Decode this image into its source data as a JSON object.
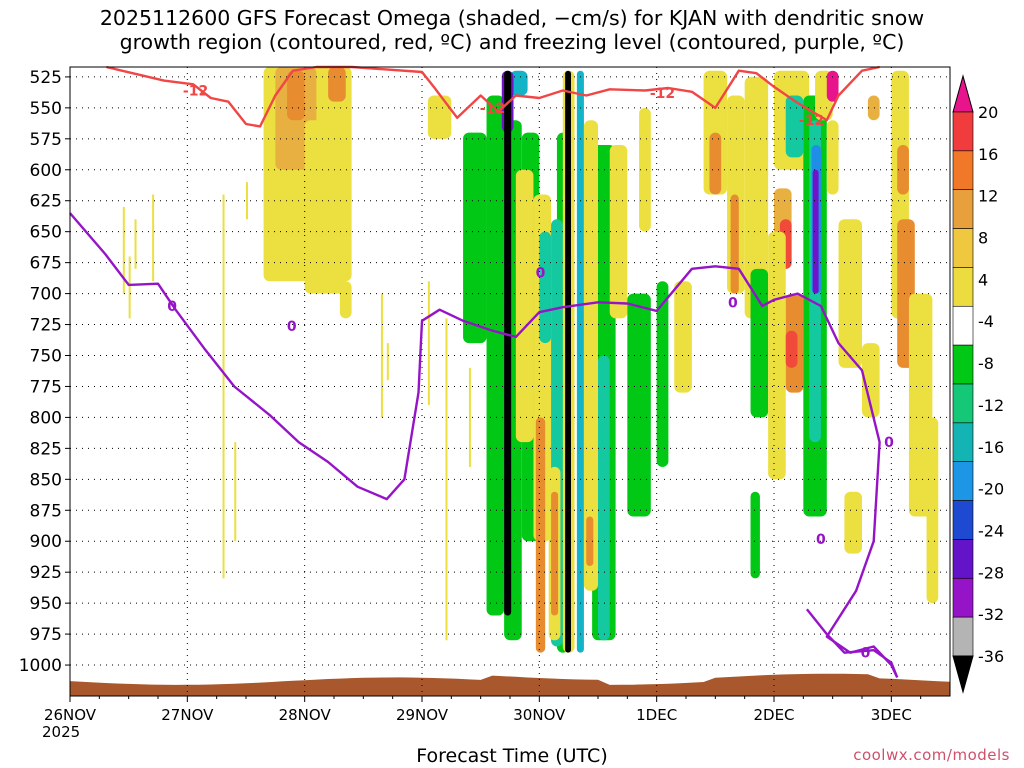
{
  "title": {
    "line1": "2025112600 GFS Forecast Omega (shaded, −cm/s) for KJAN with dendritic snow",
    "line2": "growth region (contoured, red, ºC) and freezing level (contoured, purple, ºC)"
  },
  "credit": "coolwx.com/models",
  "chart_data": {
    "type": "heatmap",
    "xlabel": "Forecast Time (UTC)",
    "year_label": "2025",
    "x_ticks": [
      "26NOV",
      "27NOV",
      "28NOV",
      "29NOV",
      "30NOV",
      "1DEC",
      "2DEC",
      "3DEC"
    ],
    "x_range_days": [
      0,
      7.5
    ],
    "y_ticks": [
      525,
      550,
      575,
      600,
      625,
      650,
      675,
      700,
      725,
      750,
      775,
      800,
      825,
      850,
      875,
      900,
      925,
      950,
      975,
      1000
    ],
    "y_range_hpa": [
      517,
      1025
    ],
    "grid": true,
    "colorbar": {
      "labels": [
        "20",
        "16",
        "12",
        "8",
        "4",
        "-4",
        "-8",
        "-12",
        "-16",
        "-20",
        "-24",
        "-28",
        "-32",
        "-36"
      ],
      "colors": [
        "#e8148c",
        "#f03c3c",
        "#f07828",
        "#e8a03c",
        "#f0c840",
        "#ecdc40",
        "#ffffff",
        "#00c814",
        "#14c878",
        "#14b4b4",
        "#1e96e6",
        "#1e4ad2",
        "#6414c8",
        "#9614c8",
        "#b4b4b4",
        "#000000"
      ]
    },
    "contours": {
      "dendritic_minus12": {
        "label": "-12",
        "color": "#f04646",
        "points": [
          [
            0.31,
            517
          ],
          [
            0.8,
            528
          ],
          [
            1.05,
            531
          ],
          [
            1.2,
            542
          ],
          [
            1.35,
            545
          ],
          [
            1.5,
            563
          ],
          [
            1.62,
            565
          ],
          [
            1.75,
            540
          ],
          [
            1.9,
            520
          ],
          [
            2.1,
            517
          ],
          [
            2.4,
            517
          ],
          [
            3.0,
            521
          ],
          [
            3.1,
            533
          ],
          [
            3.3,
            558
          ],
          [
            3.5,
            540
          ],
          [
            3.65,
            553
          ],
          [
            3.8,
            540
          ],
          [
            4.0,
            542
          ],
          [
            4.2,
            536
          ],
          [
            4.4,
            540
          ],
          [
            4.6,
            535
          ],
          [
            4.9,
            536
          ],
          [
            5.1,
            534
          ],
          [
            5.3,
            537
          ],
          [
            5.5,
            550
          ],
          [
            5.7,
            520
          ],
          [
            5.85,
            522
          ],
          [
            6.0,
            533
          ],
          [
            6.2,
            546
          ],
          [
            6.45,
            560
          ],
          [
            6.55,
            540
          ],
          [
            6.75,
            520
          ],
          [
            6.9,
            517
          ]
        ],
        "label_positions": [
          [
            1.07,
            536
          ],
          [
            3.6,
            550
          ],
          [
            5.05,
            538
          ],
          [
            6.32,
            560
          ]
        ]
      },
      "freezing_0": {
        "label": "0",
        "color": "#9614c8",
        "points": [
          [
            0,
            635
          ],
          [
            0.3,
            668
          ],
          [
            0.5,
            693
          ],
          [
            0.75,
            692
          ],
          [
            0.9,
            713
          ],
          [
            1.15,
            745
          ],
          [
            1.4,
            775
          ],
          [
            1.7,
            798
          ],
          [
            1.95,
            820
          ],
          [
            2.2,
            836
          ],
          [
            2.45,
            856
          ],
          [
            2.7,
            866
          ],
          [
            2.85,
            850
          ],
          [
            2.97,
            780
          ],
          [
            3.0,
            722
          ],
          [
            3.15,
            713
          ],
          [
            3.35,
            722
          ],
          [
            3.6,
            730
          ],
          [
            3.8,
            735
          ],
          [
            4.0,
            715
          ],
          [
            4.2,
            711
          ],
          [
            4.5,
            707
          ],
          [
            4.75,
            708
          ],
          [
            5.0,
            714
          ],
          [
            5.3,
            680
          ],
          [
            5.5,
            678
          ],
          [
            5.7,
            680
          ],
          [
            5.9,
            710
          ],
          [
            6.0,
            705
          ],
          [
            6.2,
            700
          ],
          [
            6.4,
            710
          ],
          [
            6.55,
            740
          ],
          [
            6.75,
            762
          ],
          [
            6.9,
            820
          ],
          [
            6.85,
            900
          ],
          [
            6.7,
            940
          ],
          [
            6.45,
            977
          ],
          [
            6.65,
            990
          ],
          [
            6.85,
            985
          ],
          [
            7.0,
            1000
          ],
          [
            7.05,
            1010
          ]
        ],
        "second_points": [
          [
            6.28,
            955
          ],
          [
            6.45,
            975
          ],
          [
            6.6,
            990
          ],
          [
            6.85,
            988
          ],
          [
            7.0,
            998
          ],
          [
            7.05,
            1010
          ]
        ],
        "label_positions": [
          [
            0.87,
            710
          ],
          [
            1.89,
            726
          ],
          [
            4.01,
            683
          ],
          [
            5.65,
            707
          ],
          [
            6.98,
            820
          ],
          [
            6.4,
            898
          ],
          [
            6.78,
            990
          ]
        ]
      }
    }
  }
}
